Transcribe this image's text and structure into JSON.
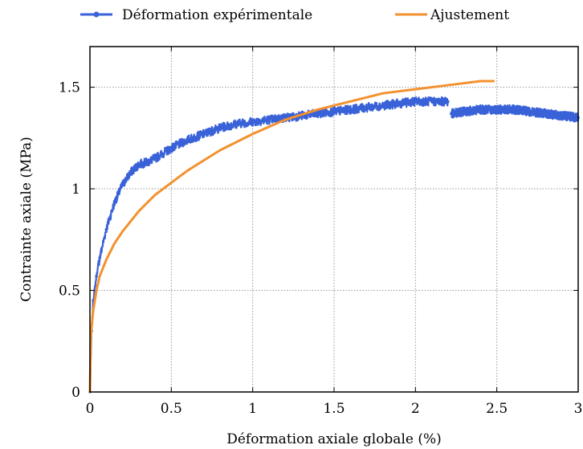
{
  "chart_data": {
    "type": "line",
    "title": "",
    "xlabel": "Déformation axiale globale (%)",
    "ylabel": "Contrainte axiale (MPa)",
    "xlim": [
      0,
      3
    ],
    "ylim": [
      0,
      1.7
    ],
    "xticks": [
      0,
      0.5,
      1,
      1.5,
      2,
      2.5,
      3
    ],
    "xtick_labels": [
      "0",
      "0.5",
      "1",
      "1.5",
      "2",
      "2.5",
      "3"
    ],
    "yticks": [
      0,
      0.5,
      1,
      1.5
    ],
    "ytick_labels": [
      "0",
      "0.5",
      "1",
      "1.5"
    ],
    "grid": true,
    "legend_position": "top, outside plot",
    "series": [
      {
        "name": "Déformation expérimentale",
        "color": "#3a62d8",
        "style": "noisy-line-with-markers",
        "x": [
          0,
          0.01,
          0.02,
          0.04,
          0.06,
          0.1,
          0.15,
          0.2,
          0.25,
          0.3,
          0.35,
          0.4,
          0.5,
          0.6,
          0.7,
          0.8,
          0.9,
          1.0,
          1.1,
          1.2,
          1.3,
          1.4,
          1.5,
          1.6,
          1.7,
          1.8,
          1.9,
          2.0,
          2.1,
          2.2,
          2.22,
          2.3,
          2.4,
          2.5,
          2.6,
          2.7,
          2.8,
          2.9,
          3.0
        ],
        "y": [
          0,
          0.3,
          0.45,
          0.57,
          0.66,
          0.8,
          0.93,
          1.02,
          1.08,
          1.12,
          1.13,
          1.15,
          1.2,
          1.24,
          1.27,
          1.3,
          1.32,
          1.33,
          1.34,
          1.35,
          1.36,
          1.37,
          1.38,
          1.39,
          1.4,
          1.41,
          1.42,
          1.43,
          1.43,
          1.43,
          1.37,
          1.38,
          1.39,
          1.39,
          1.39,
          1.38,
          1.37,
          1.36,
          1.35
        ]
      },
      {
        "name": "Ajustement",
        "color": "#f3912f",
        "style": "line",
        "x": [
          0,
          0.005,
          0.01,
          0.02,
          0.04,
          0.06,
          0.1,
          0.15,
          0.2,
          0.3,
          0.4,
          0.5,
          0.6,
          0.7,
          0.8,
          0.9,
          1.0,
          1.2,
          1.4,
          1.6,
          1.8,
          2.0,
          2.2,
          2.4,
          2.48
        ],
        "y": [
          0,
          0.26,
          0.32,
          0.4,
          0.5,
          0.57,
          0.65,
          0.73,
          0.79,
          0.89,
          0.97,
          1.03,
          1.09,
          1.14,
          1.19,
          1.23,
          1.27,
          1.34,
          1.39,
          1.43,
          1.47,
          1.49,
          1.51,
          1.53,
          1.53
        ]
      }
    ]
  }
}
